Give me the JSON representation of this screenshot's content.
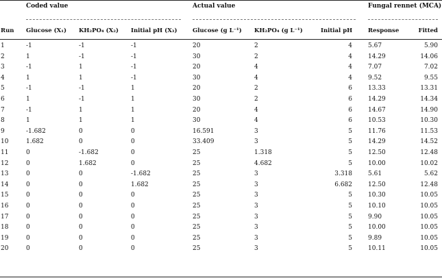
{
  "groups": {
    "coded": "Coded value",
    "actual": "Actual value",
    "response_group": "Fungal rennet (MCA)"
  },
  "headers": {
    "run": "Run",
    "glucose_coded": "Glucose (X₁)",
    "kh2po4_coded": "KH₂PO₄ (X₂)",
    "ph_coded": "Initial pH (X₃)",
    "glucose_actual": "Glucose (g L⁻¹)",
    "kh2po4_actual": "KH₂PO₄ (g L⁻¹)",
    "ph_actual": "Initial pH",
    "response": "Response",
    "fitted": "Fitted"
  },
  "rows": [
    [
      "1",
      "-1",
      "-1",
      "-1",
      "20",
      "2",
      "4",
      "5.67",
      "5.90"
    ],
    [
      "2",
      "1",
      "-1",
      "-1",
      "30",
      "2",
      "4",
      "14.29",
      "14.06"
    ],
    [
      "3",
      "-1",
      "1",
      "-1",
      "20",
      "4",
      "4",
      "7.07",
      "7.02"
    ],
    [
      "4",
      "1",
      "1",
      "-1",
      "30",
      "4",
      "4",
      "9.52",
      "9.55"
    ],
    [
      "5",
      "-1",
      "-1",
      "1",
      "20",
      "2",
      "6",
      "13.33",
      "13.31"
    ],
    [
      "6",
      "1",
      "-1",
      "1",
      "30",
      "2",
      "6",
      "14.29",
      "14.34"
    ],
    [
      "7",
      "-1",
      "1",
      "1",
      "20",
      "4",
      "6",
      "14.67",
      "14.90"
    ],
    [
      "8",
      "1",
      "1",
      "1",
      "30",
      "4",
      "6",
      "10.53",
      "10.30"
    ],
    [
      "9",
      "-1.682",
      "0",
      "0",
      "16.591",
      "3",
      "5",
      "11.76",
      "11.53"
    ],
    [
      "10",
      "1.682",
      "0",
      "0",
      "33.409",
      "3",
      "5",
      "14.29",
      "14.52"
    ],
    [
      "11",
      "0",
      "-1.682",
      "0",
      "25",
      "1.318",
      "5",
      "12.50",
      "12.48"
    ],
    [
      "12",
      "0",
      "1.682",
      "0",
      "25",
      "4.682",
      "5",
      "10.00",
      "10.02"
    ],
    [
      "13",
      "0",
      "0",
      "-1.682",
      "25",
      "3",
      "3.318",
      "5.61",
      "5.62"
    ],
    [
      "14",
      "0",
      "0",
      "1.682",
      "25",
      "3",
      "6.682",
      "12.50",
      "12.48"
    ],
    [
      "15",
      "0",
      "0",
      "0",
      "25",
      "3",
      "5",
      "10.30",
      "10.05"
    ],
    [
      "16",
      "0",
      "0",
      "0",
      "25",
      "3",
      "5",
      "10.10",
      "10.05"
    ],
    [
      "17",
      "0",
      "0",
      "0",
      "25",
      "3",
      "5",
      "9.90",
      "10.05"
    ],
    [
      "18",
      "0",
      "0",
      "0",
      "25",
      "3",
      "5",
      "10.00",
      "10.05"
    ],
    [
      "19",
      "0",
      "0",
      "0",
      "25",
      "3",
      "5",
      "9.89",
      "10.05"
    ],
    [
      "20",
      "0",
      "0",
      "0",
      "25",
      "3",
      "5",
      "10.11",
      "10.05"
    ]
  ]
}
